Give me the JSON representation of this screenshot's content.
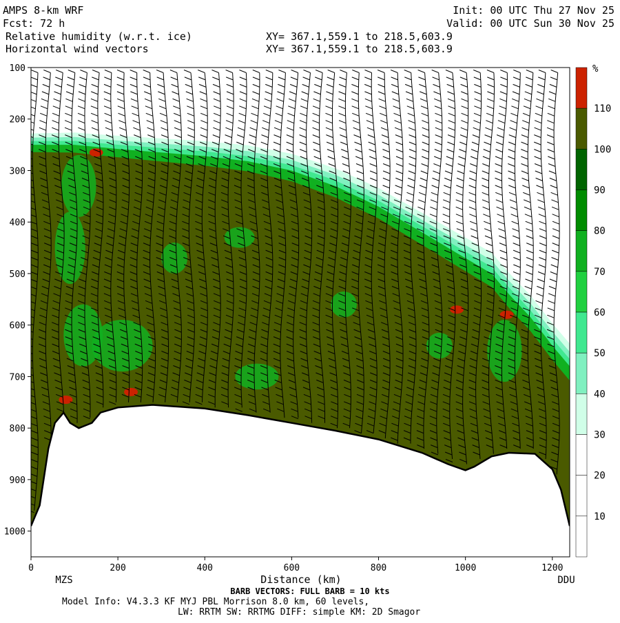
{
  "header": {
    "model": "AMPS 8-km WRF",
    "forecast": "Fcst:   72 h",
    "field1": "Relative humidity (w.r.t. ice)",
    "field2": "Horizontal wind vectors",
    "init": "Init: 00 UTC Thu 27 Nov 25",
    "valid": "Valid: 00 UTC Sun 30 Nov 25",
    "xy1": "XY= 367.1,559.1 to 218.5,603.9",
    "xy2": "XY= 367.1,559.1 to 218.5,603.9"
  },
  "footer": {
    "barb_note": "BARB VECTORS:  FULL BARB = 10 kts",
    "model_info": "Model Info: V4.3.3   KF     MYJ PBL  Morrison         8.0 km,  60 levels,",
    "model_info2": "LW: RRTM SW: RRTMG   DIFF: simple KM: 2D Smagor"
  },
  "chart_data": {
    "type": "heatmap",
    "title": "Relative humidity (w.r.t. ice)",
    "xlabel": "Distance (km)",
    "ylabel": "",
    "xlim": [
      0,
      1240
    ],
    "ylim": [
      1050,
      100
    ],
    "x_ticks": [
      0,
      200,
      400,
      600,
      800,
      1000,
      1200
    ],
    "y_ticks": [
      100,
      200,
      300,
      400,
      500,
      600,
      700,
      800,
      900,
      1000
    ],
    "x_endpoints": {
      "left": "MZS",
      "right": "DDU"
    },
    "colorbar": {
      "unit": "%",
      "ticks": [
        10,
        20,
        30,
        40,
        50,
        60,
        70,
        80,
        90,
        100,
        110
      ],
      "colors": [
        "#ffffff",
        "#ffffff",
        "#ffffff",
        "#d0ffe8",
        "#80f0c0",
        "#40e890",
        "#20d040",
        "#10b020",
        "#008c00",
        "#006400",
        "#4a5a00",
        "#cc2200"
      ]
    },
    "moist_top": [
      {
        "x": 0,
        "p": 250
      },
      {
        "x": 100,
        "p": 250
      },
      {
        "x": 200,
        "p": 258
      },
      {
        "x": 300,
        "p": 265
      },
      {
        "x": 400,
        "p": 272
      },
      {
        "x": 500,
        "p": 282
      },
      {
        "x": 600,
        "p": 300
      },
      {
        "x": 700,
        "p": 330
      },
      {
        "x": 800,
        "p": 370
      },
      {
        "x": 900,
        "p": 420
      },
      {
        "x": 1000,
        "p": 470
      },
      {
        "x": 1060,
        "p": 500
      },
      {
        "x": 1100,
        "p": 540
      },
      {
        "x": 1150,
        "p": 585
      },
      {
        "x": 1200,
        "p": 640
      },
      {
        "x": 1240,
        "p": 680
      }
    ],
    "terrain": [
      {
        "x": 0,
        "p": 990
      },
      {
        "x": 20,
        "p": 950
      },
      {
        "x": 40,
        "p": 840
      },
      {
        "x": 55,
        "p": 790
      },
      {
        "x": 75,
        "p": 770
      },
      {
        "x": 90,
        "p": 790
      },
      {
        "x": 110,
        "p": 800
      },
      {
        "x": 140,
        "p": 790
      },
      {
        "x": 160,
        "p": 770
      },
      {
        "x": 200,
        "p": 760
      },
      {
        "x": 280,
        "p": 755
      },
      {
        "x": 400,
        "p": 762
      },
      {
        "x": 500,
        "p": 775
      },
      {
        "x": 600,
        "p": 790
      },
      {
        "x": 700,
        "p": 805
      },
      {
        "x": 800,
        "p": 822
      },
      {
        "x": 900,
        "p": 848
      },
      {
        "x": 960,
        "p": 870
      },
      {
        "x": 1000,
        "p": 882
      },
      {
        "x": 1020,
        "p": 875
      },
      {
        "x": 1060,
        "p": 855
      },
      {
        "x": 1100,
        "p": 848
      },
      {
        "x": 1160,
        "p": 850
      },
      {
        "x": 1200,
        "p": 880
      },
      {
        "x": 1220,
        "p": 920
      },
      {
        "x": 1240,
        "p": 990
      }
    ],
    "saturated_patches": [
      {
        "x": 150,
        "p": 265
      },
      {
        "x": 230,
        "p": 730
      },
      {
        "x": 80,
        "p": 745
      },
      {
        "x": 980,
        "p": 570
      },
      {
        "x": 1095,
        "p": 580
      }
    ]
  }
}
